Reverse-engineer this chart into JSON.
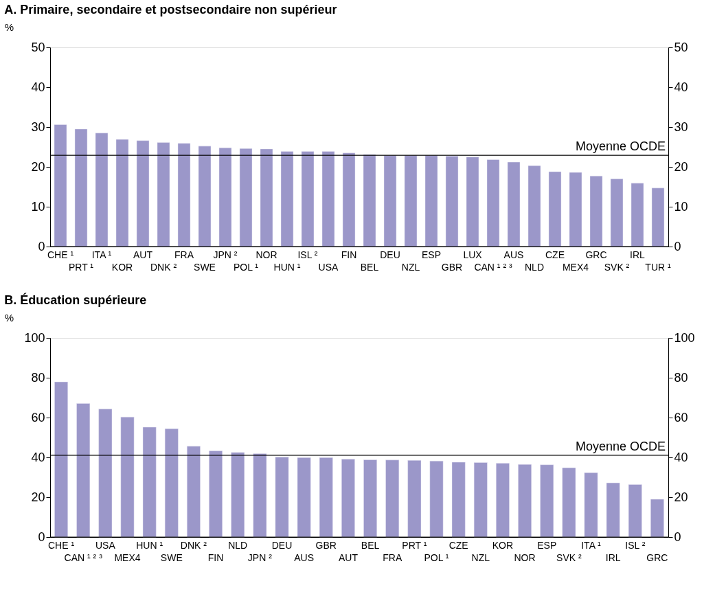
{
  "chart_data": [
    {
      "type": "bar",
      "title": "A. Primaire, secondaire et postsecondaire non supérieur",
      "ylabel": "%",
      "categories": [
        "CHE ¹",
        "PRT ¹",
        "ITA ¹",
        "KOR",
        "AUT",
        "DNK ²",
        "FRA",
        "SWE",
        "JPN ²",
        "POL ¹",
        "NOR",
        "HUN ¹",
        "ISL ²",
        "USA",
        "FIN",
        "BEL",
        "DEU",
        "NZL",
        "ESP",
        "GBR",
        "LUX",
        "CAN ¹ ² ³",
        "AUS",
        "NLD",
        "CZE",
        "MEX4",
        "GRC",
        "SVK ²",
        "IRL",
        "TUR ¹"
      ],
      "values": [
        30.6,
        29.5,
        28.5,
        26.9,
        26.6,
        26.1,
        25.9,
        25.2,
        24.8,
        24.6,
        24.5,
        23.9,
        23.9,
        23.9,
        23.5,
        23.1,
        22.9,
        22.9,
        22.9,
        22.7,
        22.5,
        21.8,
        21.2,
        20.3,
        18.8,
        18.6,
        17.7,
        17.0,
        15.9,
        14.7
      ],
      "color": "#9b97c9",
      "ylim": [
        0,
        50
      ],
      "yticks": [
        0,
        10,
        20,
        30,
        40,
        50
      ],
      "y2lim": [
        0,
        50
      ],
      "y2ticks": [
        0,
        10,
        20,
        30,
        40,
        50
      ],
      "ref_lines": [
        {
          "axis": "y",
          "value": 22.9,
          "label": "Moyenne OCDE",
          "color": "#000000"
        }
      ]
    },
    {
      "type": "bar",
      "title": "B. Éducation supérieure",
      "ylabel": "%",
      "categories": [
        "CHE ¹",
        "CAN ¹ ² ³",
        "USA",
        "MEX4",
        "HUN ¹",
        "SWE",
        "DNK ²",
        "FIN",
        "NLD",
        "JPN ²",
        "DEU",
        "AUS",
        "GBR",
        "AUT",
        "BEL",
        "FRA",
        "PRT ¹",
        "POL ¹",
        "CZE",
        "NZL",
        "KOR",
        "NOR",
        "ESP",
        "SVK ²",
        "ITA ¹",
        "IRL",
        "ISL ²",
        "GRC"
      ],
      "values": [
        77.9,
        67.1,
        64.3,
        60.3,
        55.2,
        54.4,
        45.6,
        43.3,
        42.5,
        41.9,
        40.2,
        39.9,
        39.9,
        39.1,
        38.8,
        38.7,
        38.5,
        38.2,
        37.6,
        37.4,
        37.1,
        36.5,
        36.3,
        34.8,
        32.3,
        27.2,
        26.4,
        19.0
      ],
      "color": "#9b97c9",
      "ylim": [
        0,
        100
      ],
      "yticks": [
        0,
        20,
        40,
        60,
        80,
        100
      ],
      "y2lim": [
        0,
        100
      ],
      "y2ticks": [
        0,
        20,
        40,
        60,
        80,
        100
      ],
      "ref_lines": [
        {
          "axis": "y",
          "value": 41.1,
          "label": "Moyenne OCDE",
          "color": "#000000"
        }
      ]
    }
  ]
}
